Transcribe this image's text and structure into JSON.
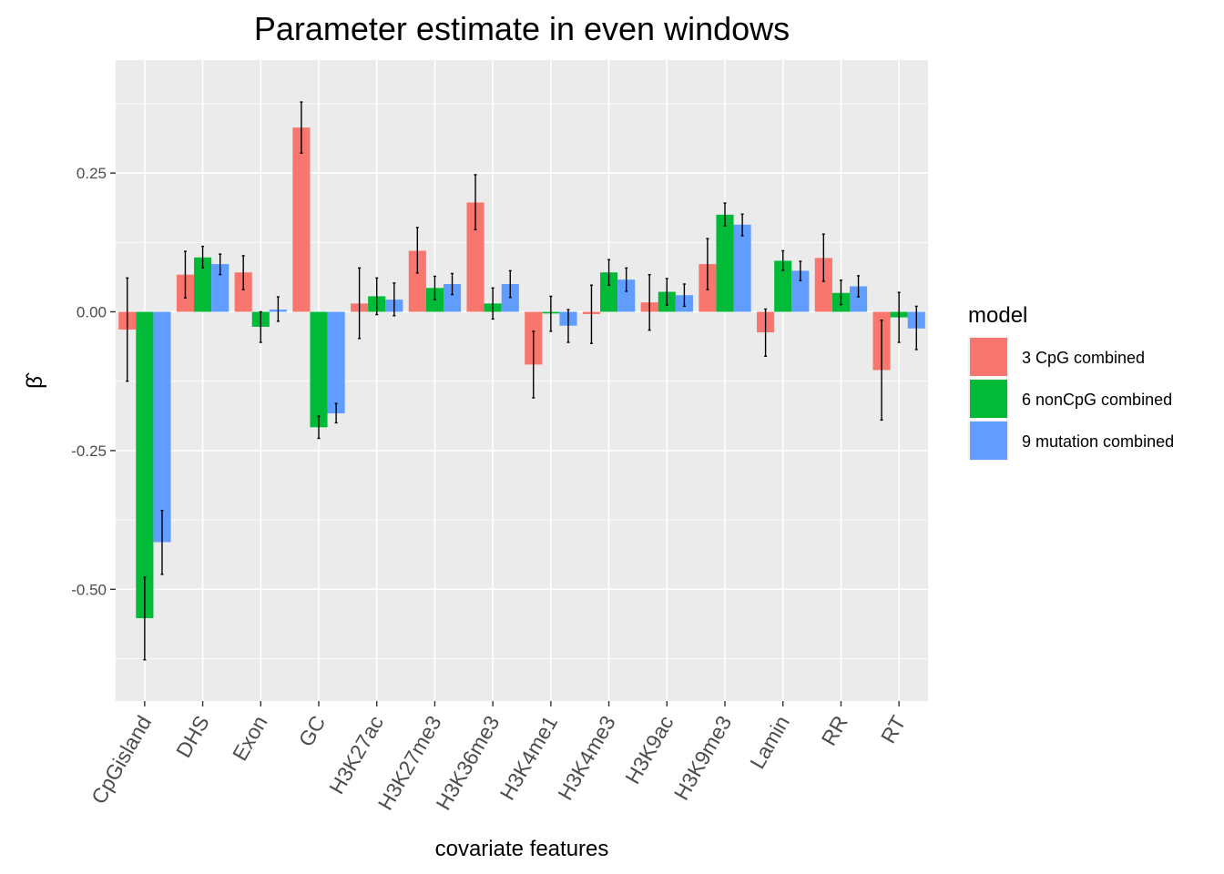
{
  "chart_data": {
    "type": "bar",
    "title": "Parameter estimate in even windows",
    "xlabel": "covariate features",
    "ylabel": "β̂",
    "categories": [
      "CpGisland",
      "DHS",
      "Exon",
      "GC",
      "H3K27ac",
      "H3K27me3",
      "H3K36me3",
      "H3K4me1",
      "H3K4me3",
      "H3K9ac",
      "H3K9me3",
      "Lamin",
      "RR",
      "RT"
    ],
    "yticks": [
      "0.25",
      "0.00",
      "-0.25",
      "-0.50"
    ],
    "ytick_values": [
      0.25,
      0.0,
      -0.25,
      -0.5
    ],
    "ylim": [
      -0.7,
      0.45
    ],
    "grid": true,
    "legend": {
      "title": "model",
      "position": "right"
    },
    "series": [
      {
        "name": "3 CpG combined",
        "color": "#F8766D",
        "values": [
          -0.032,
          0.067,
          0.071,
          0.332,
          0.015,
          0.11,
          0.197,
          -0.095,
          -0.004,
          0.017,
          0.086,
          -0.037,
          0.097,
          -0.105
        ],
        "ci_low": [
          -0.125,
          0.025,
          0.04,
          0.286,
          -0.048,
          0.07,
          0.148,
          -0.155,
          -0.057,
          -0.033,
          0.04,
          -0.08,
          0.055,
          -0.195
        ],
        "ci_high": [
          0.061,
          0.109,
          0.101,
          0.378,
          0.079,
          0.152,
          0.247,
          -0.035,
          0.048,
          0.067,
          0.132,
          0.005,
          0.14,
          -0.015
        ]
      },
      {
        "name": "6 nonCpG combined",
        "color": "#00BA38",
        "values": [
          -0.552,
          0.098,
          -0.027,
          -0.208,
          0.028,
          0.043,
          0.015,
          -0.003,
          0.071,
          0.036,
          0.175,
          0.092,
          0.034,
          -0.01
        ],
        "ci_low": [
          -0.627,
          0.079,
          -0.055,
          -0.228,
          -0.005,
          0.022,
          -0.013,
          -0.035,
          0.048,
          0.012,
          0.155,
          0.075,
          0.013,
          -0.055
        ],
        "ci_high": [
          -0.478,
          0.118,
          0.0,
          -0.188,
          0.061,
          0.064,
          0.043,
          0.028,
          0.094,
          0.06,
          0.196,
          0.11,
          0.057,
          0.035
        ]
      },
      {
        "name": "9 mutation combined",
        "color": "#619CFF",
        "values": [
          -0.415,
          0.086,
          0.004,
          -0.183,
          0.022,
          0.05,
          0.05,
          -0.025,
          0.058,
          0.03,
          0.157,
          0.074,
          0.046,
          -0.03
        ],
        "ci_low": [
          -0.473,
          0.067,
          -0.017,
          -0.2,
          -0.007,
          0.031,
          0.026,
          -0.055,
          0.037,
          0.01,
          0.137,
          0.056,
          0.027,
          -0.068
        ],
        "ci_high": [
          -0.358,
          0.104,
          0.027,
          -0.165,
          0.052,
          0.069,
          0.074,
          0.004,
          0.079,
          0.05,
          0.176,
          0.091,
          0.065,
          0.01
        ]
      }
    ]
  }
}
